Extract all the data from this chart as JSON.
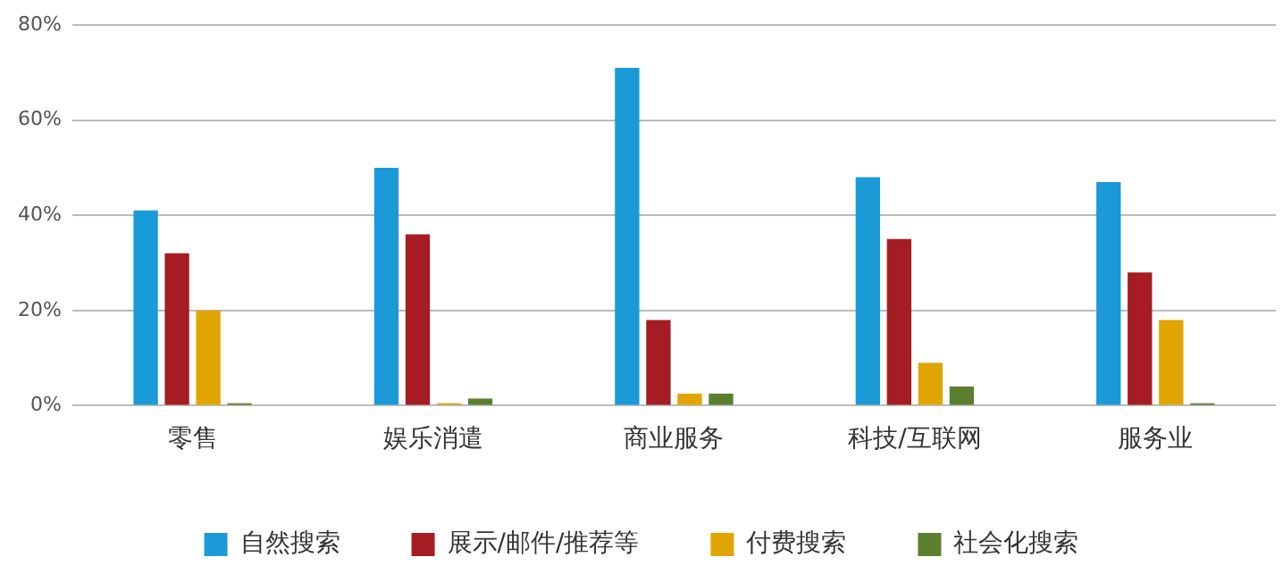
{
  "chart_data": {
    "type": "bar",
    "categories": [
      "零售",
      "娱乐消遣",
      "商业服务",
      "科技/互联网",
      "服务业"
    ],
    "series": [
      {
        "name": "自然搜索",
        "color": "#1a9ad6",
        "values": [
          41,
          50,
          71,
          48,
          47
        ]
      },
      {
        "name": "展示/邮件/推荐等",
        "color": "#a51c22",
        "values": [
          32,
          36,
          18,
          35,
          28
        ]
      },
      {
        "name": "付费搜索",
        "color": "#e0a500",
        "values": [
          20,
          0.5,
          2.5,
          9,
          18
        ]
      },
      {
        "name": "社会化搜索",
        "color": "#5b7f2f",
        "values": [
          0.5,
          1.5,
          2.5,
          4,
          0.5
        ]
      }
    ],
    "ylim": [
      0,
      80
    ],
    "yticks": [
      {
        "value": 0,
        "label": "0%"
      },
      {
        "value": 20,
        "label": "20%"
      },
      {
        "value": 40,
        "label": "40%"
      },
      {
        "value": 60,
        "label": "60%"
      },
      {
        "value": 80,
        "label": "80%"
      }
    ],
    "grid": "y",
    "legend": "bottom"
  }
}
